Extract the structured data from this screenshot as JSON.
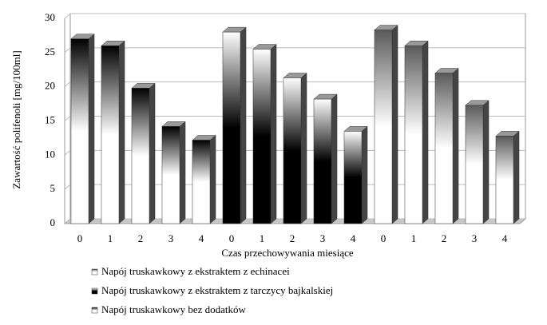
{
  "chart_data": {
    "type": "bar3d",
    "y_label": "Zawartość polifenoli [mg/100ml]",
    "x_label": "Czas przechowywania miesiące",
    "categories": [
      "0",
      "1",
      "2",
      "3",
      "4",
      "0",
      "1",
      "2",
      "3",
      "4",
      "0",
      "1",
      "2",
      "3",
      "4"
    ],
    "series": [
      {
        "name": "Napój truskawkowy z ekstraktem z echinacei",
        "gradient": [
          "#5a5a5a",
          "#ffffff"
        ],
        "values": [
          null,
          null,
          null,
          null,
          null,
          null,
          null,
          null,
          null,
          null,
          28.3,
          26,
          22,
          17.3,
          12.8
        ]
      },
      {
        "name": "Napój truskawkowy z ekstraktem z tarczycy bajkalskiej",
        "gradient": [
          "#ffffff",
          "#000000"
        ],
        "values": [
          null,
          null,
          null,
          null,
          null,
          28,
          25.5,
          21.3,
          18.2,
          13.5,
          null,
          null,
          null,
          null,
          null
        ]
      },
      {
        "name": "Napój truskawkowy bez dodatków",
        "gradient": [
          "#000000",
          "#ffffff"
        ],
        "values": [
          27,
          26,
          19.8,
          14.2,
          12.2,
          null,
          null,
          null,
          null,
          null,
          null,
          null,
          null,
          null,
          null
        ]
      }
    ],
    "ylim": [
      0,
      30
    ],
    "yticks": [
      0,
      5,
      10,
      15,
      20,
      25,
      30
    ],
    "grid": true
  }
}
